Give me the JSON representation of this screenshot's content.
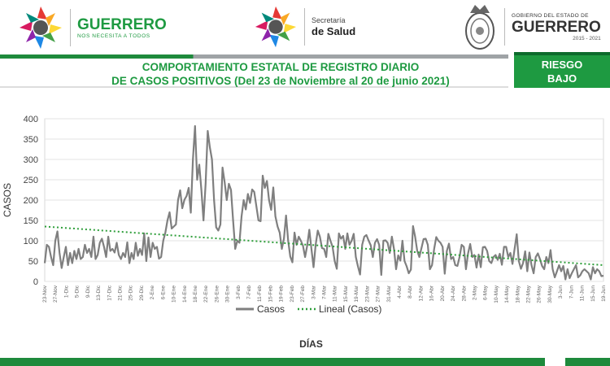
{
  "header": {
    "brand_name": "GUERRERO",
    "brand_tagline": "NOS NECESITA A TODOS",
    "secretaria_line1": "Secretaría",
    "secretaria_line2": "de Salud",
    "gov_line1": "GOBIERNO DEL ESTADO DE",
    "gov_line2": "GUERRERO",
    "gov_years": "2015 - 2021",
    "title_line1": "COMPORTAMIENTO ESTATAL DE REGISTRO DIARIO",
    "title_line2": "DE CASOS POSITIVOS (Del 23 de Noviembre al 20 de junio 2021)",
    "risk_line1": "RIESGO",
    "risk_line2": "BAJO"
  },
  "colors": {
    "green": "#1e9a41",
    "dark_green": "#1e8a3c",
    "series_line": "#7f7f7f",
    "trend_line": "#2e9e3a"
  },
  "chart_data": {
    "type": "line",
    "xlabel": "DÍAS",
    "ylabel": "CASOS",
    "ylim": [
      0,
      400
    ],
    "yticks": [
      0,
      50,
      100,
      150,
      200,
      250,
      300,
      350,
      400
    ],
    "x_start_label": "23-Nov",
    "x_end_label": "20-Jun",
    "x_tick_labels": [
      "23-Nov",
      "27-Nov",
      "1-Dic",
      "5-Dic",
      "9-Dic",
      "13-Dic",
      "17-Dic",
      "21-Dic",
      "25-Dic",
      "29-Dic",
      "2-Ene",
      "6-Ene",
      "10-Ene",
      "14-Ene",
      "18-Ene",
      "22-Ene",
      "26-Ene",
      "30-Ene",
      "3-Feb",
      "7-Feb",
      "11-Feb",
      "15-Feb",
      "19-Feb",
      "23-Feb",
      "27-Feb",
      "3-Mar",
      "7-Mar",
      "11-Mar",
      "15-Mar",
      "19-Mar",
      "23-Mar",
      "27-Mar",
      "31-Mar",
      "4-Abr",
      "8-Abr",
      "12-Abr",
      "16-Abr",
      "20-Abr",
      "24-Abr",
      "28-Abr",
      "2-May",
      "6-May",
      "10-May",
      "14-May",
      "18-May",
      "22-May",
      "26-May",
      "30-May",
      "3-Jun",
      "7-Jun",
      "11-Jun",
      "15-Jun",
      "19-Jun"
    ],
    "legend": [
      {
        "name": "Casos",
        "style": "solid"
      },
      {
        "name": "Lineal (Casos)",
        "style": "dotted"
      }
    ],
    "legend_position": "bottom",
    "trend": {
      "start": 135,
      "end": 40
    },
    "series": [
      {
        "name": "Casos",
        "values": [
          45,
          90,
          85,
          60,
          40,
          100,
          123,
          70,
          33,
          60,
          85,
          40,
          70,
          45,
          75,
          55,
          80,
          55,
          60,
          90,
          70,
          80,
          60,
          110,
          55,
          65,
          95,
          105,
          85,
          60,
          110,
          75,
          80,
          71,
          95,
          65,
          55,
          70,
          60,
          96,
          45,
          70,
          55,
          95,
          63,
          80,
          65,
          118,
          50,
          108,
          60,
          95,
          80,
          85,
          56,
          60,
          100,
          120,
          150,
          170,
          130,
          135,
          140,
          200,
          224,
          180,
          201,
          210,
          230,
          169,
          300,
          382,
          250,
          287,
          225,
          150,
          240,
          370,
          330,
          300,
          200,
          133,
          125,
          140,
          280,
          244,
          200,
          240,
          225,
          150,
          80,
          100,
          95,
          160,
          200,
          177,
          215,
          193,
          226,
          220,
          185,
          150,
          148,
          260,
          230,
          247,
          200,
          176,
          231,
          160,
          135,
          120,
          80,
          105,
          162,
          100,
          61,
          47,
          120,
          90,
          110,
          100,
          88,
          60,
          88,
          127,
          80,
          35,
          90,
          125,
          110,
          82,
          80,
          60,
          117,
          100,
          85,
          50,
          31,
          118,
          105,
          112,
          80,
          118,
          90,
          100,
          117,
          60,
          37,
          17,
          90,
          110,
          114,
          101,
          89,
          60,
          95,
          104,
          90,
          16,
          100,
          101,
          95,
          70,
          110,
          80,
          30,
          64,
          51,
          100,
          50,
          37,
          20,
          29,
          136,
          110,
          75,
          60,
          82,
          104,
          105,
          90,
          30,
          40,
          80,
          109,
          100,
          95,
          85,
          19,
          75,
          93,
          55,
          60,
          40,
          38,
          60,
          90,
          85,
          30,
          69,
          92,
          60,
          65,
          34,
          66,
          35,
          84,
          85,
          75,
          50,
          45,
          60,
          65,
          53,
          68,
          41,
          85,
          85,
          60,
          70,
          43,
          80,
          116,
          50,
          31,
          45,
          74,
          25,
          71,
          40,
          20,
          60,
          69,
          55,
          38,
          30,
          60,
          45,
          77,
          30,
          10,
          25,
          40,
          25,
          38,
          5,
          30,
          8,
          20,
          30,
          40,
          10,
          15,
          25,
          30,
          25,
          20,
          5,
          35,
          20,
          30,
          25,
          13,
          14
        ]
      }
    ]
  }
}
